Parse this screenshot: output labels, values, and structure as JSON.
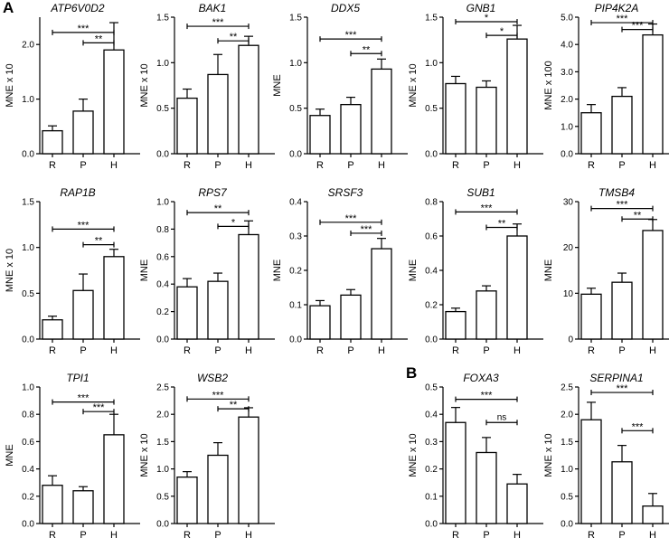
{
  "panel_letters": {
    "a": "A",
    "b": "B"
  },
  "chart_data": [
    {
      "type": "bar",
      "title": "ATP6V0D2",
      "ylabel": "MNE x 10",
      "categories": [
        "R",
        "P",
        "H"
      ],
      "values": [
        0.42,
        0.78,
        1.9
      ],
      "errors": [
        0.09,
        0.22,
        0.5
      ],
      "ylim": [
        0,
        2.5
      ],
      "yticks": [
        "0.0",
        "1.0",
        "2.0"
      ],
      "sig": [
        {
          "from": 0,
          "to": 2,
          "label": "***",
          "level": 2.22
        },
        {
          "from": 1,
          "to": 2,
          "label": "**",
          "level": 2.03
        }
      ]
    },
    {
      "type": "bar",
      "title": "BAK1",
      "ylabel": "MNE x 10",
      "categories": [
        "R",
        "P",
        "H"
      ],
      "values": [
        0.61,
        0.87,
        1.19
      ],
      "errors": [
        0.1,
        0.22,
        0.1
      ],
      "ylim": [
        0,
        1.5
      ],
      "yticks": [
        "0.0",
        "0.5",
        "1.0",
        "1.5"
      ],
      "sig": [
        {
          "from": 0,
          "to": 2,
          "label": "***",
          "level": 1.4
        },
        {
          "from": 1,
          "to": 2,
          "label": "**",
          "level": 1.24
        }
      ]
    },
    {
      "type": "bar",
      "title": "DDX5",
      "ylabel": "MNE",
      "categories": [
        "R",
        "P",
        "H"
      ],
      "values": [
        0.42,
        0.54,
        0.93
      ],
      "errors": [
        0.07,
        0.08,
        0.11
      ],
      "ylim": [
        0,
        1.5
      ],
      "yticks": [
        "0.0",
        "0.5",
        "1.0",
        "1.5"
      ],
      "sig": [
        {
          "from": 0,
          "to": 2,
          "label": "***",
          "level": 1.26
        },
        {
          "from": 1,
          "to": 2,
          "label": "**",
          "level": 1.1
        }
      ]
    },
    {
      "type": "bar",
      "title": "GNB1",
      "ylabel": "MNE x 10",
      "categories": [
        "R",
        "P",
        "H"
      ],
      "values": [
        0.77,
        0.73,
        1.26
      ],
      "errors": [
        0.08,
        0.07,
        0.15
      ],
      "ylim": [
        0,
        1.5
      ],
      "yticks": [
        "0.0",
        "0.5",
        "1.0",
        "1.5"
      ],
      "sig": [
        {
          "from": 0,
          "to": 2,
          "label": "*",
          "level": 1.45
        },
        {
          "from": 1,
          "to": 2,
          "label": "*",
          "level": 1.3
        }
      ]
    },
    {
      "type": "bar",
      "title": "PIP4K2A",
      "ylabel": "MNE x 100",
      "categories": [
        "R",
        "P",
        "H"
      ],
      "values": [
        1.5,
        2.1,
        4.35
      ],
      "errors": [
        0.3,
        0.32,
        0.4
      ],
      "ylim": [
        0,
        5
      ],
      "yticks": [
        "0.0",
        "1.0",
        "2.0",
        "3.0",
        "4.0",
        "5.0"
      ],
      "sig": [
        {
          "from": 0,
          "to": 2,
          "label": "***",
          "level": 4.8
        },
        {
          "from": 1,
          "to": 2,
          "label": "***",
          "level": 4.55
        }
      ]
    },
    {
      "type": "bar",
      "title": "RAP1B",
      "ylabel": "MNE x 10",
      "categories": [
        "R",
        "P",
        "H"
      ],
      "values": [
        0.21,
        0.53,
        0.9
      ],
      "errors": [
        0.04,
        0.18,
        0.08
      ],
      "ylim": [
        0,
        1.5
      ],
      "yticks": [
        "0.0",
        "0.5",
        "1.0",
        "1.5"
      ],
      "sig": [
        {
          "from": 0,
          "to": 2,
          "label": "***",
          "level": 1.2
        },
        {
          "from": 1,
          "to": 2,
          "label": "**",
          "level": 1.03
        }
      ]
    },
    {
      "type": "bar",
      "title": "RPS7",
      "ylabel": "MNE",
      "categories": [
        "R",
        "P",
        "H"
      ],
      "values": [
        0.38,
        0.42,
        0.76
      ],
      "errors": [
        0.06,
        0.06,
        0.1
      ],
      "ylim": [
        0,
        1.0
      ],
      "yticks": [
        "0.0",
        "0.2",
        "0.4",
        "0.6",
        "0.8",
        "1.0"
      ],
      "sig": [
        {
          "from": 0,
          "to": 2,
          "label": "**",
          "level": 0.92
        },
        {
          "from": 1,
          "to": 2,
          "label": "*",
          "level": 0.82
        }
      ]
    },
    {
      "type": "bar",
      "title": "SRSF3",
      "ylabel": "MNE",
      "categories": [
        "R",
        "P",
        "H"
      ],
      "values": [
        0.097,
        0.128,
        0.263
      ],
      "errors": [
        0.015,
        0.016,
        0.03
      ],
      "ylim": [
        0,
        0.4
      ],
      "yticks": [
        "0.0",
        "0.1",
        "0.2",
        "0.3",
        "0.4"
      ],
      "sig": [
        {
          "from": 0,
          "to": 2,
          "label": "***",
          "level": 0.34
        },
        {
          "from": 1,
          "to": 2,
          "label": "***",
          "level": 0.308
        }
      ]
    },
    {
      "type": "bar",
      "title": "SUB1",
      "ylabel": "MNE",
      "categories": [
        "R",
        "P",
        "H"
      ],
      "values": [
        0.16,
        0.28,
        0.6
      ],
      "errors": [
        0.02,
        0.03,
        0.07
      ],
      "ylim": [
        0,
        0.8
      ],
      "yticks": [
        "0.0",
        "0.2",
        "0.4",
        "0.6",
        "0.8"
      ],
      "sig": [
        {
          "from": 0,
          "to": 2,
          "label": "***",
          "level": 0.74
        },
        {
          "from": 1,
          "to": 2,
          "label": "**",
          "level": 0.65
        }
      ]
    },
    {
      "type": "bar",
      "title": "TMSB4",
      "ylabel": "MNE",
      "categories": [
        "R",
        "P",
        "H"
      ],
      "values": [
        9.8,
        12.4,
        23.7
      ],
      "errors": [
        1.3,
        2.0,
        2.4
      ],
      "ylim": [
        0,
        30
      ],
      "yticks": [
        "0",
        "10",
        "20",
        "30"
      ],
      "sig": [
        {
          "from": 0,
          "to": 2,
          "label": "***",
          "level": 28.5
        },
        {
          "from": 1,
          "to": 2,
          "label": "**",
          "level": 26.2
        }
      ]
    },
    {
      "type": "bar",
      "title": "TPI1",
      "ylabel": "MNE",
      "categories": [
        "R",
        "P",
        "H"
      ],
      "values": [
        0.28,
        0.24,
        0.65
      ],
      "errors": [
        0.07,
        0.03,
        0.15
      ],
      "ylim": [
        0,
        1.0
      ],
      "yticks": [
        "0.0",
        "0.2",
        "0.4",
        "0.6",
        "0.8",
        "1.0"
      ],
      "sig": [
        {
          "from": 0,
          "to": 2,
          "label": "***",
          "level": 0.89
        },
        {
          "from": 1,
          "to": 2,
          "label": "***",
          "level": 0.82
        }
      ]
    },
    {
      "type": "bar",
      "title": "WSB2",
      "ylabel": "MNE x 10",
      "categories": [
        "R",
        "P",
        "H"
      ],
      "values": [
        0.85,
        1.25,
        1.95
      ],
      "errors": [
        0.1,
        0.23,
        0.17
      ],
      "ylim": [
        0,
        2.5
      ],
      "yticks": [
        "0.0",
        "0.5",
        "1.0",
        "1.5",
        "2.0",
        "2.5"
      ],
      "sig": [
        {
          "from": 0,
          "to": 2,
          "label": "***",
          "level": 2.28
        },
        {
          "from": 1,
          "to": 2,
          "label": "**",
          "level": 2.1
        }
      ]
    },
    {
      "type": "bar",
      "title": "FOXA3",
      "ylabel": "MNE x 10",
      "categories": [
        "R",
        "P",
        "H"
      ],
      "values": [
        0.37,
        0.26,
        0.145
      ],
      "errors": [
        0.055,
        0.055,
        0.035
      ],
      "ylim": [
        0,
        0.5
      ],
      "yticks": [
        "0.0",
        "0.1",
        "0.2",
        "0.3",
        "0.4",
        "0.5"
      ],
      "sig": [
        {
          "from": 0,
          "to": 2,
          "label": "***",
          "level": 0.455
        },
        {
          "from": 1,
          "to": 2,
          "label": "ns",
          "level": 0.37
        }
      ]
    },
    {
      "type": "bar",
      "title": "SERPINA1",
      "ylabel": "MNE x 10",
      "categories": [
        "R",
        "P",
        "H"
      ],
      "values": [
        1.9,
        1.13,
        0.32
      ],
      "errors": [
        0.32,
        0.3,
        0.23
      ],
      "ylim": [
        0,
        2.5
      ],
      "yticks": [
        "0.0",
        "0.5",
        "1.0",
        "1.5",
        "2.0",
        "2.5"
      ],
      "sig": [
        {
          "from": 0,
          "to": 2,
          "label": "***",
          "level": 2.4
        },
        {
          "from": 1,
          "to": 2,
          "label": "***",
          "level": 1.7
        }
      ]
    }
  ]
}
